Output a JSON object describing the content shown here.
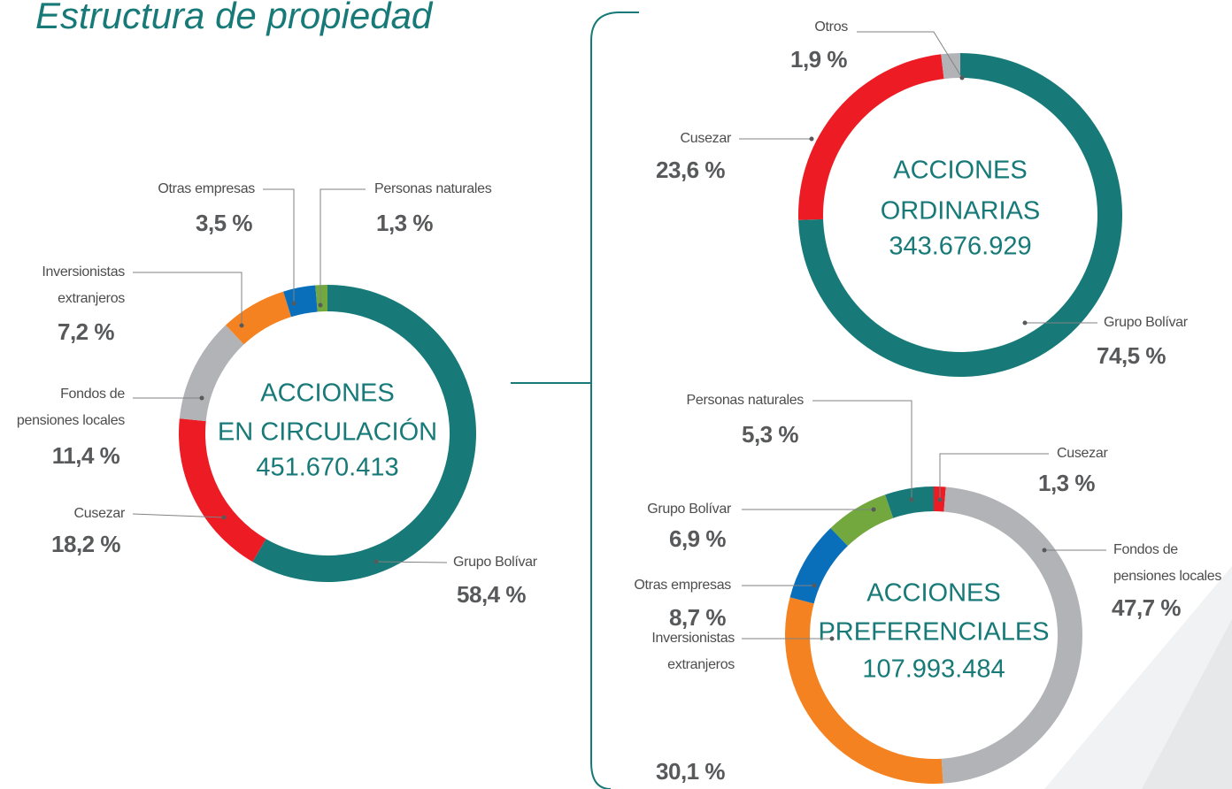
{
  "title": "Estructura de propiedad",
  "chart_data": [
    {
      "type": "donut",
      "center": [
        "ACCIONES",
        "EN  CIRCULACIÓN",
        "451.670.413"
      ],
      "categories": [
        "Grupo Bolívar",
        "Cusezar",
        "Fondos de\npensiones locales",
        "Inversionistas\nextranjeros",
        "Otras empresas",
        "Personas naturales"
      ],
      "values": [
        58.4,
        18.2,
        11.4,
        7.2,
        3.5,
        1.3
      ],
      "value_labels": [
        "58,4 %",
        "18,2 %",
        "11,4 %",
        "7,2 %",
        "3,5 %",
        "1,3 %"
      ],
      "colors": [
        "#177a78",
        "#ed1c24",
        "#b1b3b6",
        "#f58220",
        "#0a6fba",
        "#72a83e"
      ]
    },
    {
      "type": "donut",
      "center": [
        "ACCIONES",
        "ORDINARIAS",
        "343.676.929"
      ],
      "categories": [
        "Grupo Bolívar",
        "Cusezar",
        "Otros"
      ],
      "values": [
        74.5,
        23.6,
        1.9
      ],
      "value_labels": [
        "74,5 %",
        "23,6 %",
        "1,9 %"
      ],
      "colors": [
        "#177a78",
        "#ed1c24",
        "#b1b3b6"
      ]
    },
    {
      "type": "donut",
      "center": [
        "ACCIONES",
        "PREFERENCIALES",
        "107.993.484"
      ],
      "categories": [
        "Cusezar",
        "Fondos de\npensiones locales",
        "Inversionistas\nextranjeros",
        "Otras empresas",
        "Grupo Bolívar",
        "Personas naturales"
      ],
      "values": [
        1.3,
        47.7,
        30.1,
        8.7,
        6.9,
        5.3
      ],
      "value_labels": [
        "1,3 %",
        "47,7 %",
        "30,1 %",
        "8,7 %",
        "6,9 %",
        "5,3 %"
      ],
      "colors": [
        "#ed1c24",
        "#b1b3b6",
        "#f58220",
        "#0a6fba",
        "#72a83e",
        "#177a78"
      ]
    }
  ]
}
